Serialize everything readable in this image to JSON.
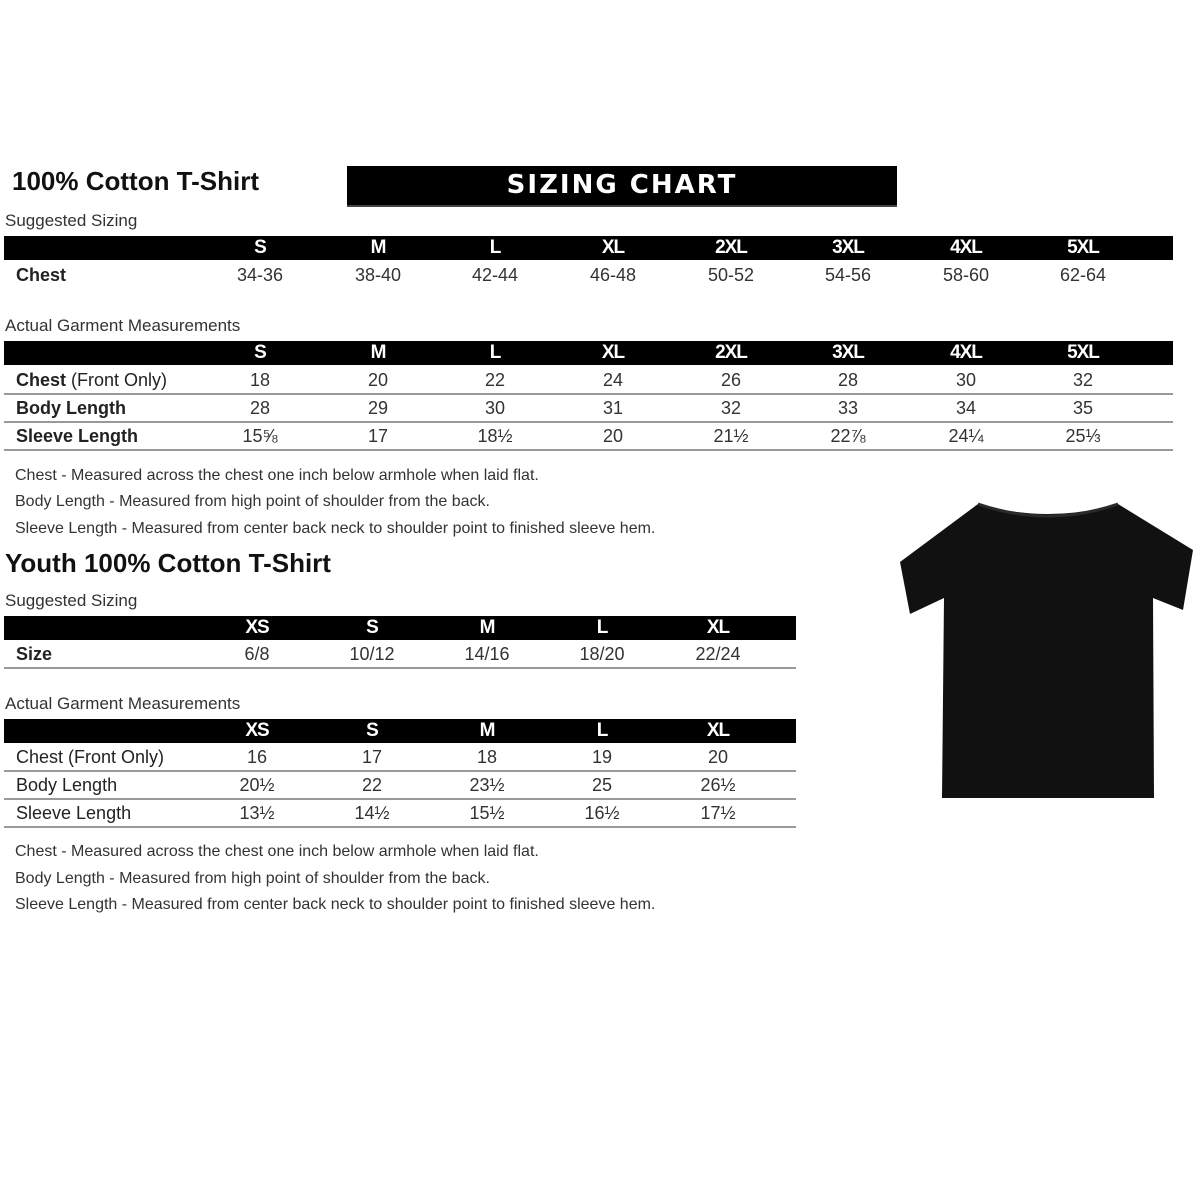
{
  "adult": {
    "title": "100% Cotton T-Shirt",
    "banner": "SIZING CHART",
    "suggested_label": "Suggested Sizing",
    "sizes": [
      "S",
      "M",
      "L",
      "XL",
      "2XL",
      "3XL",
      "4XL",
      "5XL"
    ],
    "suggested_rows": [
      {
        "label": "Chest",
        "values": [
          "34-36",
          "38-40",
          "42-44",
          "46-48",
          "50-52",
          "54-56",
          "58-60",
          "62-64"
        ]
      }
    ],
    "actual_label": "Actual Garment Measurements",
    "actual_rows": [
      {
        "label": "Chest",
        "label_suffix": " (Front Only)",
        "values": [
          "18",
          "20",
          "22",
          "24",
          "26",
          "28",
          "30",
          "32"
        ]
      },
      {
        "label": "Body Length",
        "label_suffix": "",
        "values": [
          "28",
          "29",
          "30",
          "31",
          "32",
          "33",
          "34",
          "35"
        ]
      },
      {
        "label": "Sleeve Length",
        "label_suffix": "",
        "values": [
          "15⅝",
          "17",
          "18½",
          "20",
          "21½",
          "22⅞",
          "24¼",
          "25⅓"
        ]
      }
    ],
    "notes": [
      "Chest - Measured across the chest one inch below armhole when laid flat.",
      "Body Length - Measured from high point of shoulder from the back.",
      "Sleeve Length - Measured from center back neck to shoulder point to finished sleeve hem."
    ]
  },
  "youth": {
    "title": "Youth 100% Cotton T-Shirt",
    "suggested_label": "Suggested Sizing",
    "sizes": [
      "XS",
      "S",
      "M",
      "L",
      "XL"
    ],
    "suggested_rows": [
      {
        "label": "Size",
        "values": [
          "6/8",
          "10/12",
          "14/16",
          "18/20",
          "22/24"
        ]
      }
    ],
    "actual_label": "Actual Garment Measurements",
    "actual_rows": [
      {
        "label": "Chest (Front Only)",
        "values": [
          "16",
          "17",
          "18",
          "19",
          "20"
        ]
      },
      {
        "label": "Body Length",
        "values": [
          "20½",
          "22",
          "23½",
          "25",
          "26½"
        ]
      },
      {
        "label": "Sleeve Length",
        "values": [
          "13½",
          "14½",
          "15½",
          "16½",
          "17½"
        ]
      }
    ],
    "notes": [
      "Chest - Measured across the chest one inch below armhole when laid flat.",
      "Body Length - Measured from high point of shoulder from the back.",
      "Sleeve Length - Measured from center back neck to shoulder point to finished sleeve hem."
    ]
  },
  "image": {
    "icon": "black-tshirt-icon",
    "color": "#111111"
  }
}
